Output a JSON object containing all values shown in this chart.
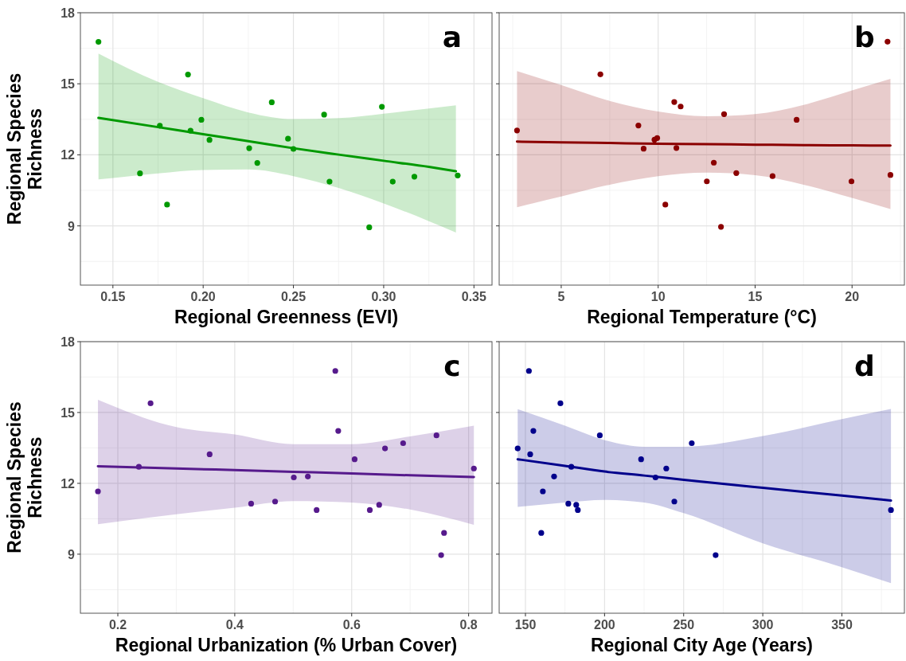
{
  "chart_data": [
    {
      "type": "scatter",
      "title": "a",
      "xlabel": "Regional Greenness (EVI)",
      "ylabel": "Regional Species Richness",
      "xlim": [
        0.132,
        0.36
      ],
      "ylim": [
        6.5,
        18
      ],
      "xticks": [
        0.15,
        {
          "value": 0.2,
          "label": "0.20"
        },
        0.25,
        {
          "value": 0.3,
          "label": "0.30"
        },
        0.35
      ],
      "yticks": [
        9,
        12,
        15,
        18
      ],
      "grid": true,
      "marker": "circle",
      "series": [
        {
          "type": "scatter",
          "color": "#009900",
          "x": [
            0.142,
            0.165,
            0.176,
            0.18,
            0.1916,
            0.193,
            0.199,
            0.2035,
            0.2255,
            0.23,
            0.238,
            0.247,
            0.25,
            0.267,
            0.27,
            0.292,
            0.299,
            0.305,
            0.317,
            0.341
          ],
          "values": [
            16.77,
            11.22,
            13.23,
            9.9,
            15.39,
            13.02,
            13.48,
            12.63,
            12.28,
            11.66,
            14.22,
            12.68,
            12.25,
            13.7,
            10.87,
            8.94,
            14.03,
            10.87,
            11.08,
            11.13
          ]
        },
        {
          "type": "line",
          "marker": "none",
          "color": "#009900",
          "x": [
            0.142,
            0.175,
            0.2,
            0.225,
            0.25,
            0.275,
            0.3,
            0.325,
            0.34
          ],
          "values": [
            13.56,
            13.17,
            12.87,
            12.58,
            12.28,
            12.01,
            11.75,
            11.49,
            11.31
          ],
          "lower": [
            10.96,
            11.22,
            11.36,
            11.38,
            11.1,
            10.6,
            9.95,
            9.2,
            8.72
          ],
          "upper": [
            16.28,
            15.08,
            14.39,
            13.79,
            13.51,
            13.55,
            13.74,
            13.96,
            14.09
          ]
        }
      ]
    },
    {
      "type": "scatter",
      "title": "b",
      "xlabel": "Regional Temperature (°C)",
      "tick_labels": "x",
      "xlim": [
        1.8,
        22.7
      ],
      "ylim": [
        6.5,
        18
      ],
      "xticks": [
        5,
        10,
        15,
        20
      ],
      "yticks": [
        9,
        12,
        15,
        18
      ],
      "grid": true,
      "marker": "circle",
      "series": [
        {
          "type": "scatter",
          "color": "#8b0000",
          "x": [
            2.72,
            7.02,
            8.98,
            9.25,
            9.81,
            9.95,
            10.37,
            10.83,
            10.94,
            11.16,
            12.51,
            12.87,
            13.24,
            13.4,
            14.03,
            15.9,
            17.14,
            19.97,
            21.83,
            21.98
          ],
          "values": [
            13.03,
            15.4,
            13.24,
            12.26,
            12.64,
            12.71,
            9.9,
            14.23,
            12.29,
            14.04,
            10.88,
            11.67,
            8.96,
            13.72,
            11.23,
            11.1,
            13.48,
            10.88,
            16.78,
            11.15
          ]
        },
        {
          "type": "line",
          "marker": "none",
          "color": "#8b0000",
          "x": [
            2.72,
            5,
            7.5,
            10,
            12.5,
            15,
            17.5,
            20,
            21.98
          ],
          "values": [
            12.56,
            12.53,
            12.5,
            12.47,
            12.45,
            12.43,
            12.41,
            12.4,
            12.39
          ],
          "lower": [
            9.79,
            10.24,
            10.74,
            11.1,
            11.25,
            11.14,
            10.74,
            10.18,
            9.71
          ],
          "upper": [
            15.54,
            14.95,
            14.28,
            13.83,
            13.63,
            13.72,
            14.11,
            14.72,
            15.21
          ]
        }
      ]
    },
    {
      "type": "scatter",
      "title": "c",
      "xlabel": "Regional Urbanization (% Urban Cover)",
      "ylabel": "Regional Species Richness",
      "xlim": [
        0.136,
        0.84
      ],
      "ylim": [
        6.5,
        18
      ],
      "xticks": [
        0.2,
        0.4,
        0.6,
        0.8
      ],
      "yticks": [
        9,
        12,
        15,
        18
      ],
      "grid": true,
      "marker": "circle",
      "series": [
        {
          "type": "scatter",
          "color": "#561a8c",
          "x": [
            0.166,
            0.236,
            0.256,
            0.357,
            0.428,
            0.469,
            0.501,
            0.525,
            0.54,
            0.572,
            0.577,
            0.605,
            0.631,
            0.647,
            0.657,
            0.688,
            0.745,
            0.753,
            0.758,
            0.809
          ],
          "values": [
            11.66,
            12.7,
            15.39,
            13.23,
            11.14,
            11.23,
            12.25,
            12.29,
            10.87,
            16.76,
            14.22,
            13.02,
            10.87,
            11.09,
            13.48,
            13.7,
            14.03,
            8.96,
            9.9,
            12.63
          ]
        },
        {
          "type": "line",
          "marker": "none",
          "color": "#561a8c",
          "x": [
            0.166,
            0.3,
            0.4,
            0.5,
            0.6,
            0.7,
            0.809
          ],
          "values": [
            12.72,
            12.63,
            12.56,
            12.49,
            12.42,
            12.34,
            12.27
          ],
          "lower": [
            10.27,
            10.69,
            10.97,
            11.25,
            11.19,
            10.89,
            10.24
          ],
          "upper": [
            15.54,
            14.38,
            14.07,
            13.66,
            13.66,
            13.99,
            14.44
          ]
        }
      ]
    },
    {
      "type": "scatter",
      "title": "d",
      "xlabel": "Regional City Age (Years)",
      "tick_labels": "x",
      "xlim": [
        133.4,
        389.5
      ],
      "ylim": [
        6.5,
        18
      ],
      "xticks": [
        150,
        200,
        250,
        300,
        350
      ],
      "yticks": [
        9,
        12,
        15,
        18
      ],
      "grid": true,
      "marker": "circle",
      "series": [
        {
          "type": "scatter",
          "color": "#00008b",
          "x": [
            145.1,
            152.2,
            153,
            155,
            160,
            161,
            168.1,
            172.1,
            177.1,
            179,
            182.1,
            183.1,
            197,
            223.1,
            232.2,
            239,
            244.1,
            255.1,
            270.2,
            381
          ],
          "values": [
            13.48,
            16.76,
            13.23,
            14.22,
            9.9,
            11.66,
            12.29,
            15.39,
            11.14,
            12.7,
            11.09,
            10.87,
            14.03,
            13.02,
            12.25,
            12.63,
            11.23,
            13.7,
            8.96,
            10.87
          ]
        },
        {
          "type": "line",
          "marker": "none",
          "color": "#00008b",
          "x": [
            145.1,
            175,
            200,
            225,
            250,
            300,
            350,
            381
          ],
          "values": [
            13.02,
            12.74,
            12.5,
            12.33,
            12.15,
            11.81,
            11.48,
            11.27
          ],
          "lower": [
            11,
            11.19,
            11.3,
            11.19,
            10.74,
            9.46,
            8.45,
            7.77
          ],
          "upper": [
            15.14,
            14.44,
            13.83,
            13.55,
            13.55,
            14,
            14.72,
            15.15
          ]
        }
      ]
    }
  ]
}
